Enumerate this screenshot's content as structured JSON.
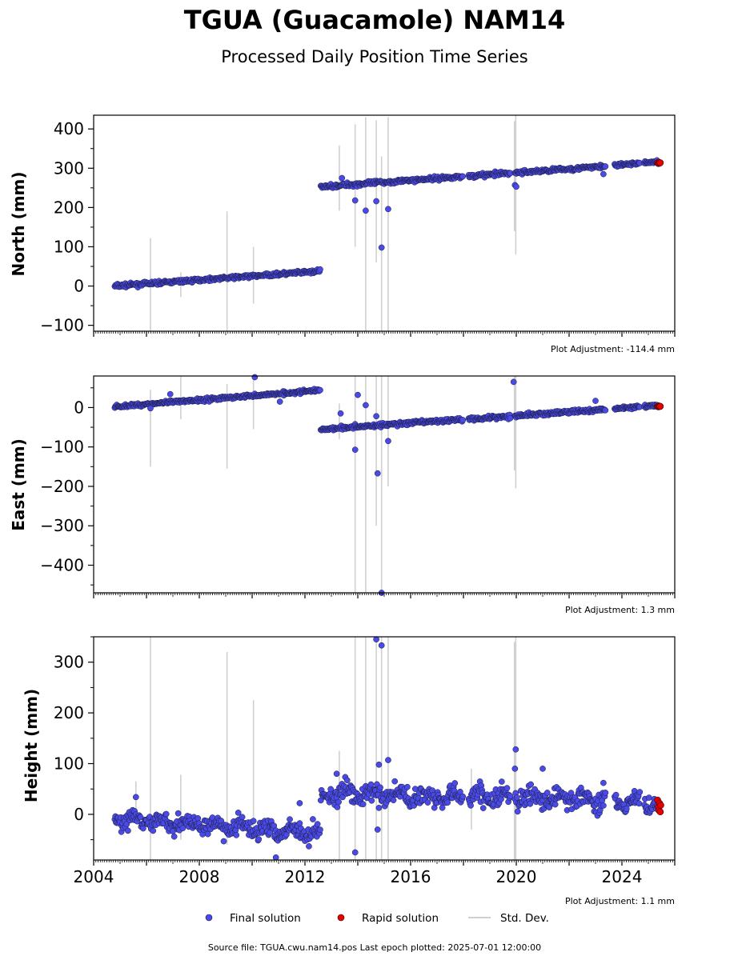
{
  "title": "TGUA (Guacamole) NAM14",
  "subtitle": "Processed Daily Position Time Series",
  "legend": [
    {
      "label": "Final solution",
      "marker": "dot",
      "color": "#4a4ae6"
    },
    {
      "label": "Rapid solution",
      "marker": "dot",
      "color": "#e60000"
    },
    {
      "label": "Std. Dev.",
      "marker": "line",
      "color": "#d0d0d0"
    }
  ],
  "footer": "Source file: TGUA.cwu.nam14.pos  Last epoch plotted: 2025-07-01 12:00:00",
  "colors": {
    "final": "#4a4ae6",
    "rapid": "#e60000",
    "error": "#c8c8c8",
    "edge": "#1a1a3a"
  },
  "chart_data": [
    {
      "type": "scatter",
      "ylabel": "North (mm)",
      "adjustment": "Plot Adjustment: -114.4 mm",
      "xlim": [
        2004.0,
        2026.0
      ],
      "ylim": [
        -115,
        435
      ],
      "yticks": [
        -100,
        0,
        100,
        200,
        300,
        400
      ],
      "ytick_labels": [
        "−100",
        "0",
        "100",
        "200",
        "300",
        "400"
      ],
      "segments": [
        {
          "x0": 2004.8,
          "x1": 2012.6,
          "y0": 0,
          "y1": 38,
          "noise": 3.5
        },
        {
          "x0": 2012.6,
          "x1": 2023.4,
          "y0": 253,
          "y1": 305,
          "noise": 4
        },
        {
          "x0": 2023.7,
          "x1": 2025.35,
          "y0": 307,
          "y1": 317,
          "noise": 3
        }
      ],
      "gaps": [
        [
          2018.0,
          2018.2
        ],
        [
          2019.8,
          2019.95
        ],
        [
          2023.5,
          2023.7
        ],
        [
          2024.7,
          2024.85
        ]
      ],
      "outliers": [
        {
          "x": 2013.9,
          "y": 218
        },
        {
          "x": 2014.3,
          "y": 192
        },
        {
          "x": 2014.7,
          "y": 216
        },
        {
          "x": 2014.9,
          "y": 98
        },
        {
          "x": 2015.15,
          "y": 196
        },
        {
          "x": 2019.95,
          "y": 257
        },
        {
          "x": 2020.0,
          "y": 253
        },
        {
          "x": 2013.4,
          "y": 275
        },
        {
          "x": 2023.3,
          "y": 285
        }
      ],
      "rapid": [
        {
          "x": 2025.35,
          "y": 314
        },
        {
          "x": 2025.38,
          "y": 312
        },
        {
          "x": 2025.4,
          "y": 315
        },
        {
          "x": 2025.42,
          "y": 313
        },
        {
          "x": 2025.45,
          "y": 314
        }
      ],
      "errorbars": [
        {
          "x": 2006.15,
          "lo": -115,
          "hi": 122
        },
        {
          "x": 2007.3,
          "lo": -28,
          "hi": 35
        },
        {
          "x": 2009.05,
          "lo": -115,
          "hi": 190
        },
        {
          "x": 2010.05,
          "lo": -45,
          "hi": 100
        },
        {
          "x": 2013.3,
          "lo": 192,
          "hi": 358
        },
        {
          "x": 2013.9,
          "lo": 100,
          "hi": 412
        },
        {
          "x": 2014.3,
          "lo": -115,
          "hi": 430
        },
        {
          "x": 2014.7,
          "lo": 60,
          "hi": 422
        },
        {
          "x": 2014.9,
          "lo": -115,
          "hi": 330
        },
        {
          "x": 2015.15,
          "lo": -115,
          "hi": 430
        },
        {
          "x": 2019.93,
          "lo": 140,
          "hi": 420
        },
        {
          "x": 2019.98,
          "lo": 80,
          "hi": 435
        }
      ]
    },
    {
      "type": "scatter",
      "ylabel": "East (mm)",
      "adjustment": "Plot Adjustment: 1.3 mm",
      "xlim": [
        2004.0,
        2026.0
      ],
      "ylim": [
        -470,
        80
      ],
      "yticks": [
        -400,
        -300,
        -200,
        -100,
        0
      ],
      "ytick_labels": [
        "−400",
        "−300",
        "−200",
        "−100",
        "0"
      ],
      "segments": [
        {
          "x0": 2004.8,
          "x1": 2012.6,
          "y0": 2,
          "y1": 44,
          "noise": 3.5
        },
        {
          "x0": 2012.6,
          "x1": 2023.4,
          "y0": -55,
          "y1": -5,
          "noise": 4
        },
        {
          "x0": 2023.7,
          "x1": 2025.35,
          "y0": -3,
          "y1": 6,
          "noise": 3
        }
      ],
      "gaps": [
        [
          2018.0,
          2018.2
        ],
        [
          2019.8,
          2019.95
        ],
        [
          2023.5,
          2023.7
        ],
        [
          2024.7,
          2024.85
        ]
      ],
      "outliers": [
        {
          "x": 2010.1,
          "y": 77
        },
        {
          "x": 2011.05,
          "y": 15
        },
        {
          "x": 2013.35,
          "y": -15
        },
        {
          "x": 2013.9,
          "y": -107
        },
        {
          "x": 2014.0,
          "y": 32
        },
        {
          "x": 2014.3,
          "y": 6
        },
        {
          "x": 2014.7,
          "y": -22
        },
        {
          "x": 2014.75,
          "y": -167
        },
        {
          "x": 2014.9,
          "y": -470
        },
        {
          "x": 2015.15,
          "y": -85
        },
        {
          "x": 2019.9,
          "y": 65
        },
        {
          "x": 2023.0,
          "y": 17
        },
        {
          "x": 2006.15,
          "y": -2
        },
        {
          "x": 2006.9,
          "y": 34
        }
      ],
      "rapid": [
        {
          "x": 2025.35,
          "y": 3
        },
        {
          "x": 2025.38,
          "y": 2
        },
        {
          "x": 2025.4,
          "y": 4
        },
        {
          "x": 2025.42,
          "y": 3
        },
        {
          "x": 2025.45,
          "y": 3
        }
      ],
      "errorbars": [
        {
          "x": 2006.15,
          "lo": -150,
          "hi": 45
        },
        {
          "x": 2007.3,
          "lo": -30,
          "hi": 80
        },
        {
          "x": 2009.05,
          "lo": -155,
          "hi": 60
        },
        {
          "x": 2010.05,
          "lo": -55,
          "hi": 80
        },
        {
          "x": 2013.3,
          "lo": -80,
          "hi": 10
        },
        {
          "x": 2013.9,
          "lo": -470,
          "hi": 80
        },
        {
          "x": 2014.3,
          "lo": -470,
          "hi": 80
        },
        {
          "x": 2014.7,
          "lo": -300,
          "hi": 80
        },
        {
          "x": 2014.9,
          "lo": -470,
          "hi": 80
        },
        {
          "x": 2015.15,
          "lo": -200,
          "hi": 80
        },
        {
          "x": 2019.93,
          "lo": -160,
          "hi": 80
        },
        {
          "x": 2019.98,
          "lo": -205,
          "hi": 80
        }
      ]
    },
    {
      "type": "scatter",
      "ylabel": "Height (mm)",
      "adjustment": "Plot Adjustment: 1.1 mm",
      "xlim": [
        2004.0,
        2026.0
      ],
      "ylim": [
        -90,
        350
      ],
      "yticks": [
        0,
        100,
        200,
        300
      ],
      "ytick_labels": [
        "0",
        "100",
        "200",
        "300"
      ],
      "xticks": [
        2004,
        2008,
        2012,
        2016,
        2020,
        2024
      ],
      "xtick_labels": [
        "2004",
        "2008",
        "2012",
        "2016",
        "2020",
        "2024"
      ],
      "segments": [
        {
          "x0": 2004.8,
          "x1": 2012.6,
          "y0": -10,
          "y1": -35,
          "noise": 14
        },
        {
          "x0": 2012.6,
          "x1": 2023.4,
          "y0": 40,
          "y1": 30,
          "noise": 16
        },
        {
          "x0": 2023.7,
          "x1": 2025.35,
          "y0": 25,
          "y1": 20,
          "noise": 14
        }
      ],
      "gaps": [
        [
          2018.0,
          2018.2
        ],
        [
          2019.8,
          2019.95
        ],
        [
          2023.5,
          2023.7
        ],
        [
          2024.7,
          2024.85
        ]
      ],
      "outliers": [
        {
          "x": 2005.6,
          "y": 34
        },
        {
          "x": 2007.2,
          "y": 2
        },
        {
          "x": 2010.9,
          "y": -85
        },
        {
          "x": 2011.8,
          "y": 22
        },
        {
          "x": 2013.9,
          "y": -75
        },
        {
          "x": 2014.7,
          "y": 345
        },
        {
          "x": 2014.75,
          "y": -30
        },
        {
          "x": 2014.9,
          "y": 333
        },
        {
          "x": 2015.15,
          "y": 107
        },
        {
          "x": 2014.8,
          "y": 98
        },
        {
          "x": 2019.98,
          "y": 128
        },
        {
          "x": 2019.95,
          "y": 90
        },
        {
          "x": 2021.0,
          "y": 90
        },
        {
          "x": 2013.2,
          "y": 80
        },
        {
          "x": 2023.3,
          "y": 62
        }
      ],
      "rapid": [
        {
          "x": 2025.35,
          "y": 28
        },
        {
          "x": 2025.38,
          "y": 15
        },
        {
          "x": 2025.4,
          "y": 8
        },
        {
          "x": 2025.42,
          "y": 22
        },
        {
          "x": 2025.45,
          "y": 5
        },
        {
          "x": 2025.47,
          "y": 18
        }
      ],
      "errorbars": [
        {
          "x": 2006.15,
          "lo": -90,
          "hi": 350
        },
        {
          "x": 2007.3,
          "lo": -50,
          "hi": 78
        },
        {
          "x": 2009.05,
          "lo": -60,
          "hi": 320
        },
        {
          "x": 2010.05,
          "lo": -40,
          "hi": 225
        },
        {
          "x": 2013.3,
          "lo": -90,
          "hi": 125
        },
        {
          "x": 2013.9,
          "lo": -90,
          "hi": 350
        },
        {
          "x": 2014.3,
          "lo": -90,
          "hi": 350
        },
        {
          "x": 2014.7,
          "lo": -90,
          "hi": 350
        },
        {
          "x": 2014.9,
          "lo": -90,
          "hi": 350
        },
        {
          "x": 2015.15,
          "lo": -90,
          "hi": 350
        },
        {
          "x": 2019.93,
          "lo": -90,
          "hi": 340
        },
        {
          "x": 2019.98,
          "lo": -90,
          "hi": 350
        },
        {
          "x": 2005.6,
          "lo": -10,
          "hi": 65
        },
        {
          "x": 2018.3,
          "lo": -30,
          "hi": 90
        }
      ]
    }
  ]
}
